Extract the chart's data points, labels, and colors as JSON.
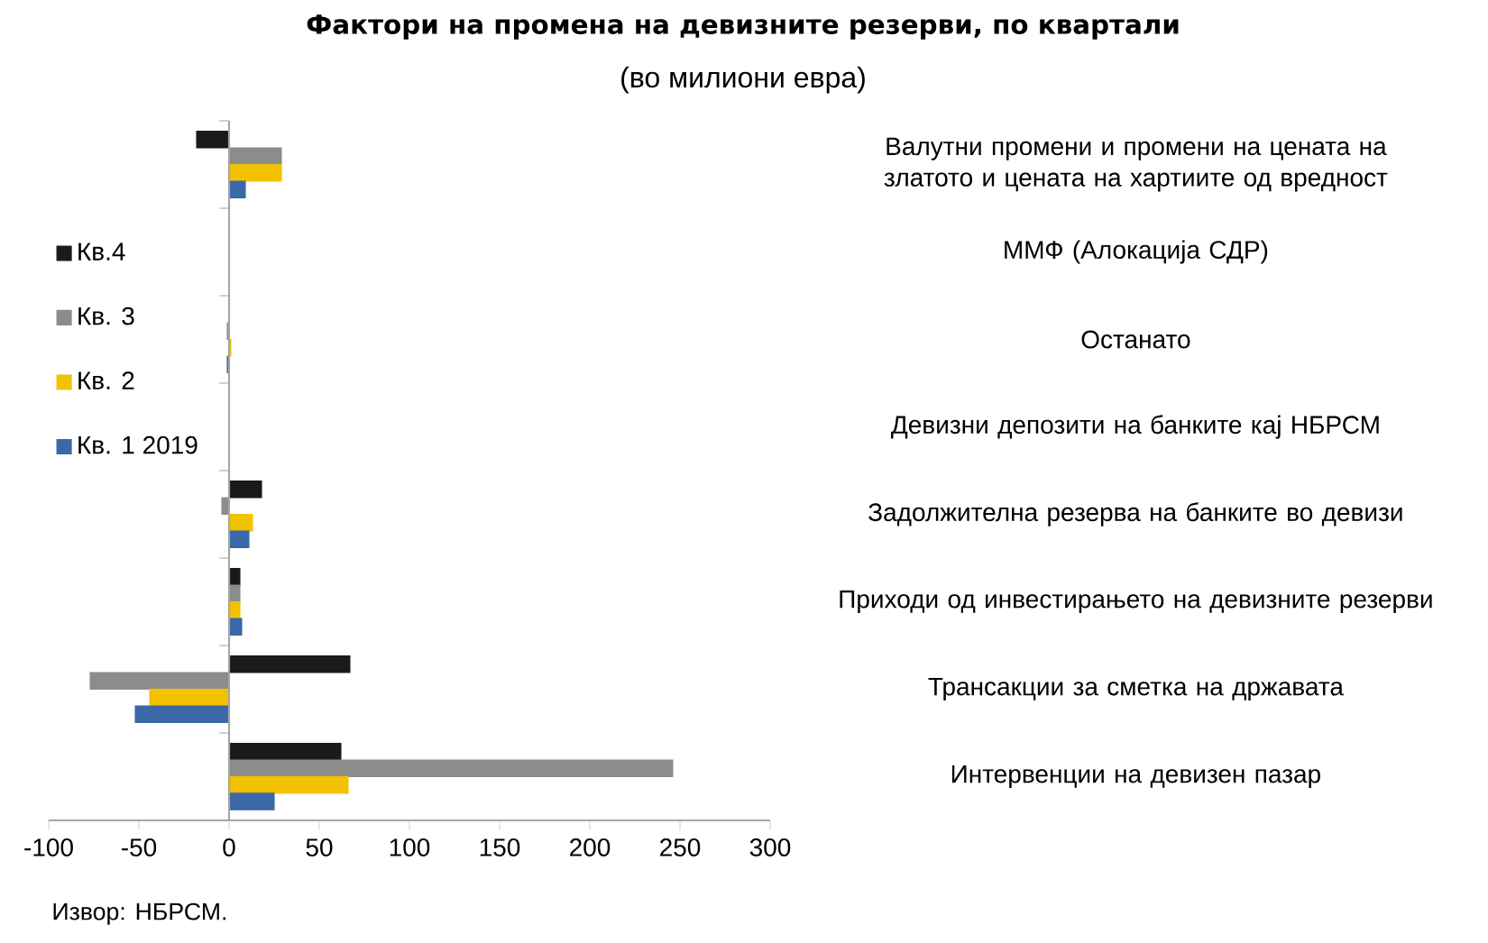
{
  "chart_data": {
    "type": "bar",
    "orientation": "horizontal",
    "title": "Фактори на промена на девизните резерви, по квартали",
    "subtitle": "(во милиони евра)",
    "annotations": [
      "Извор: НБРСМ."
    ],
    "categories": [
      "Валутни промени и промени на цената на златото и цената на хартиите од вредност",
      "ММФ (Алокација СДР)",
      "Останато",
      "Девизни депозити на банките кај НБРСМ",
      "Задолжителна резерва на банките во девизи",
      "Приходи од инвестирањето на девизните резерви",
      "Трансакции за сметка на државата",
      "Интервенции на девизен пазар"
    ],
    "series": [
      {
        "name": "Кв.4",
        "color": "#1a1a1a",
        "values": [
          -18,
          0,
          0,
          0,
          18,
          6,
          67,
          62
        ]
      },
      {
        "name": "Кв. 3",
        "color": "#8c8c8c",
        "values": [
          29,
          0,
          -1,
          0,
          -4,
          6,
          -77,
          246
        ]
      },
      {
        "name": "Кв. 2",
        "color": "#f2c200",
        "values": [
          29,
          0,
          1,
          0,
          13,
          6,
          -44,
          66
        ]
      },
      {
        "name": "Кв. 1 2019",
        "color": "#3a68a8",
        "values": [
          9,
          0,
          -1,
          0,
          11,
          7,
          -52,
          25
        ]
      }
    ],
    "xlim": [
      -100,
      300
    ],
    "xticks": [
      -100,
      -50,
      0,
      50,
      100,
      150,
      200,
      250,
      300
    ],
    "legend": "left"
  }
}
